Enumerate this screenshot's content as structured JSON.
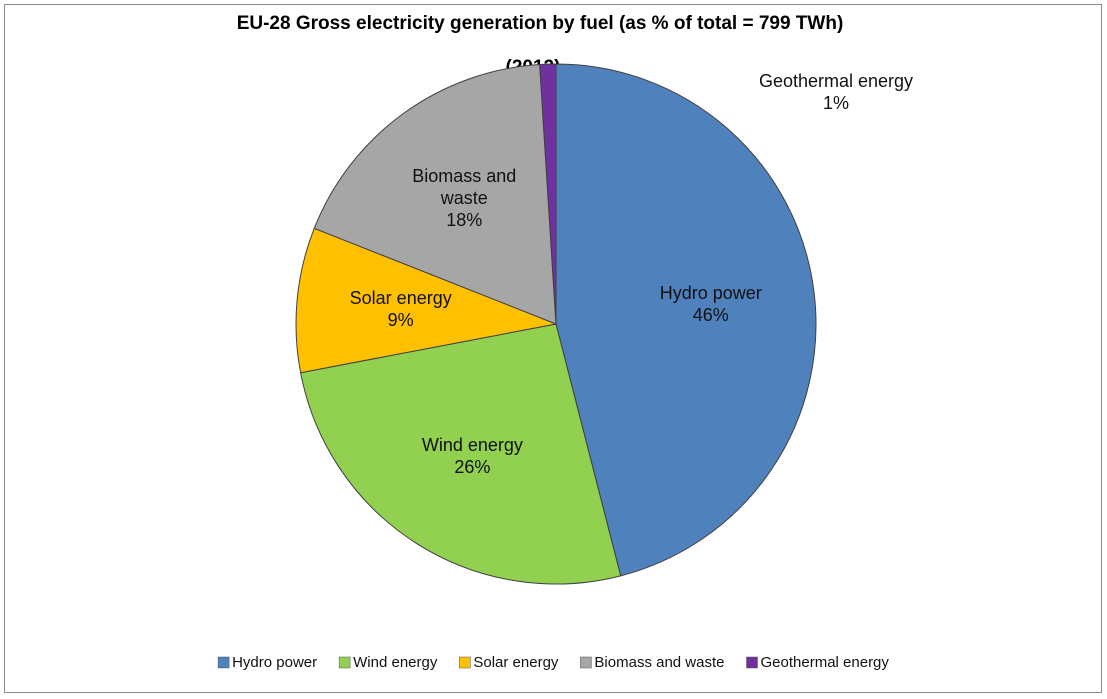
{
  "chart_data": {
    "type": "pie",
    "title": "EU-28 Gross electricity generation by fuel (as % of total = 799 TWh)",
    "subtitle": "(2012)",
    "categories": [
      "Hydro power",
      "Wind energy",
      "Solar energy",
      "Biomass and waste",
      "Geothermal energy"
    ],
    "values": [
      46,
      26,
      9,
      18,
      1
    ],
    "value_labels": [
      "46%",
      "26%",
      "9%",
      "18%",
      "1%"
    ],
    "colors": [
      "#4f81bd",
      "#92d050",
      "#ffc000",
      "#a6a6a6",
      "#7030a0"
    ],
    "legend": "bottom"
  }
}
